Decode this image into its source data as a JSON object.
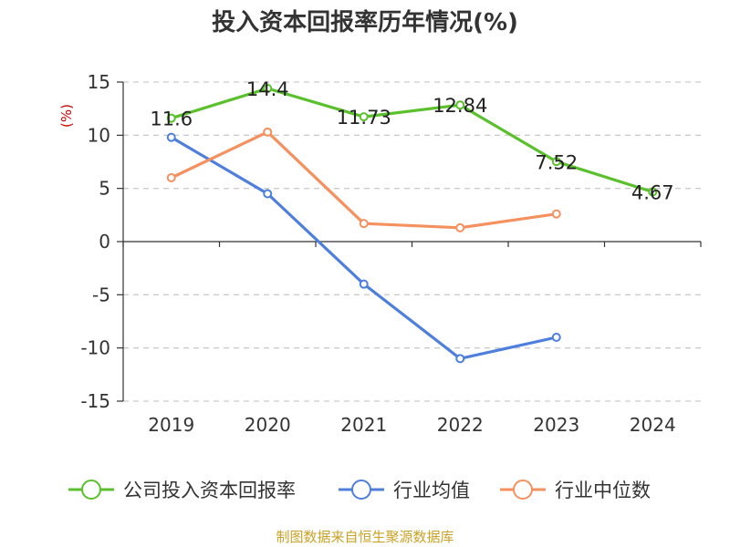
{
  "chart_data": {
    "type": "line",
    "title": "投入资本回报率历年情况(%)",
    "ylabel": "(%)",
    "xlabel": "",
    "categories": [
      "2019",
      "2020",
      "2021",
      "2022",
      "2023",
      "2024"
    ],
    "ylim": [
      -15,
      15
    ],
    "yticks": [
      15,
      10,
      5,
      0,
      -5,
      -10,
      -15
    ],
    "grid": true,
    "legend_position": "bottom",
    "series": [
      {
        "name": "公司投入资本回报率",
        "color": "#5ac02c",
        "values": [
          11.6,
          14.4,
          11.73,
          12.84,
          7.52,
          4.67
        ],
        "labels": [
          "11.6",
          "14.4",
          "11.73",
          "12.84",
          "7.52",
          "4.67"
        ],
        "show_labels": true
      },
      {
        "name": "行业均值",
        "color": "#4e7fdc",
        "values": [
          9.8,
          4.5,
          -4.0,
          -11.0,
          -9.0,
          null
        ],
        "show_labels": false
      },
      {
        "name": "行业中位数",
        "color": "#f5905f",
        "values": [
          6.0,
          10.3,
          1.7,
          1.3,
          2.6,
          null
        ],
        "show_labels": false
      }
    ],
    "source": "制图数据来自恒生聚源数据库"
  }
}
